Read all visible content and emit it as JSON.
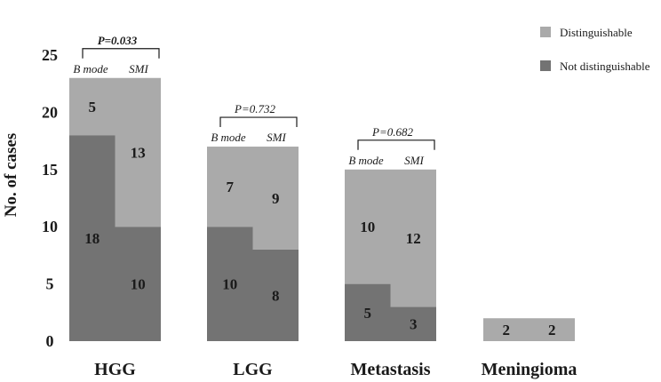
{
  "chart_data": {
    "type": "bar",
    "subtype": "paired stacked bar",
    "ylabel": "No. of cases",
    "ylim": [
      0,
      25
    ],
    "yticks": [
      0,
      5,
      10,
      15,
      20,
      25
    ],
    "methods": [
      "B mode",
      "SMI"
    ],
    "series": [
      {
        "name": "Distinguishable",
        "color": "#aaaaaa"
      },
      {
        "name": "Not distinguishable",
        "color": "#737373"
      }
    ],
    "groups": [
      {
        "name": "HGG",
        "p_value": "P=0.033",
        "p_bold": true,
        "bmode": {
          "not_distinguishable": 18,
          "distinguishable": 5
        },
        "smi": {
          "not_distinguishable": 10,
          "distinguishable": 13
        }
      },
      {
        "name": "LGG",
        "p_value": "P=0.732",
        "p_bold": false,
        "bmode": {
          "not_distinguishable": 10,
          "distinguishable": 7
        },
        "smi": {
          "not_distinguishable": 8,
          "distinguishable": 9
        }
      },
      {
        "name": "Metastasis",
        "p_value": "P=0.682",
        "p_bold": false,
        "bmode": {
          "not_distinguishable": 5,
          "distinguishable": 10
        },
        "smi": {
          "not_distinguishable": 3,
          "distinguishable": 12
        }
      },
      {
        "name": "Meningioma",
        "p_value": null,
        "p_bold": false,
        "bmode": {
          "not_distinguishable": 0,
          "distinguishable": 2
        },
        "smi": {
          "not_distinguishable": 0,
          "distinguishable": 2
        }
      }
    ],
    "legend": {
      "position": "top-right",
      "entries": [
        "Distinguishable",
        "Not distinguishable"
      ]
    }
  }
}
